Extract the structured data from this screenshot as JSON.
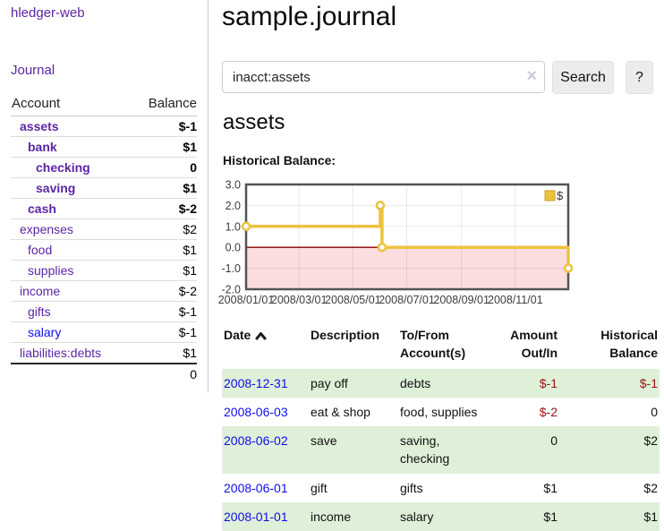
{
  "colors": {
    "accent_purple": "#5b25a4",
    "link_blue": "#0f0eea",
    "negative_strong": "#991010",
    "negative_faded": "#c47373",
    "row_green": "#dff0d8",
    "chart_gold": "#edc240"
  },
  "sidebar": {
    "app_title": "hledger-web",
    "journal_label": "Journal",
    "table": {
      "headers": {
        "account": "Account",
        "balance": "Balance"
      },
      "rows": [
        {
          "name": "assets",
          "balance": "$-1",
          "depth": 0,
          "bold": true,
          "neg": "strong"
        },
        {
          "name": "bank",
          "balance": "$1",
          "depth": 1,
          "bold": true
        },
        {
          "name": "checking",
          "balance": "0",
          "depth": 2,
          "bold": true
        },
        {
          "name": "saving",
          "balance": "$1",
          "depth": 2,
          "bold": true
        },
        {
          "name": "cash",
          "balance": "$-2",
          "depth": 1,
          "bold": true,
          "neg": "strong"
        },
        {
          "name": "expenses",
          "balance": "$2",
          "depth": 0
        },
        {
          "name": "food",
          "balance": "$1",
          "depth": 1
        },
        {
          "name": "supplies",
          "balance": "$1",
          "depth": 1
        },
        {
          "name": "income",
          "balance": "$-2",
          "depth": 0,
          "neg": "faded"
        },
        {
          "name": "gifts",
          "balance": "$-1",
          "depth": 1,
          "neg": "faded"
        },
        {
          "name": "salary",
          "balance": "$-1",
          "depth": 1,
          "neg": "faded",
          "unvisited": true
        },
        {
          "name": "liabilities:debts",
          "balance": "$1",
          "depth": 0,
          "last": true
        }
      ],
      "total": "0"
    }
  },
  "main": {
    "title": "sample.journal",
    "search": {
      "value": "inacct:assets",
      "clear_icon": "×",
      "button_label": "Search",
      "help_label": "?"
    },
    "account_heading": "assets",
    "chart_label": "Historical Balance:"
  },
  "chart_data": {
    "type": "line",
    "step": true,
    "title": "Historical Balance:",
    "series": [
      {
        "name": "$",
        "color": "#edc240",
        "points": [
          [
            "2008-01-01",
            1
          ],
          [
            "2008-06-01",
            2
          ],
          [
            "2008-06-03",
            0
          ],
          [
            "2008-12-31",
            -1
          ]
        ]
      }
    ],
    "x_start": "2008-01-01",
    "x_end": "2008-12-31",
    "x_ticks": [
      "2008/01/01",
      "2008/03/01",
      "2008/05/01",
      "2008/07/01",
      "2008/09/01",
      "2008/11/01"
    ],
    "y_ticks": [
      "3.0",
      "2.0",
      "1.0",
      "0.0",
      "-1.0",
      "-2.0"
    ],
    "ylim": [
      -2,
      3
    ],
    "grid": true,
    "negative_fill": "#fcdddd",
    "zero_line_color": "#8b0000",
    "legend": {
      "label": "$",
      "position": "top-right"
    }
  },
  "register": {
    "headers": [
      "Date",
      "Description",
      "To/From Account(s)",
      "Amount Out/In",
      "Historical Balance"
    ],
    "rows": [
      {
        "date": "2008-12-31",
        "description": "pay off",
        "accounts": "debts",
        "amount": "$-1",
        "balance": "$-1",
        "amount_neg": true,
        "balance_neg": true,
        "shaded": true
      },
      {
        "date": "2008-06-03",
        "description": "eat & shop",
        "accounts": "food, supplies",
        "amount": "$-2",
        "balance": "0",
        "amount_neg": true,
        "shaded": false
      },
      {
        "date": "2008-06-02",
        "description": "save",
        "accounts": "saving, checking",
        "amount": "0",
        "balance": "$2",
        "shaded": true
      },
      {
        "date": "2008-06-01",
        "description": "gift",
        "accounts": "gifts",
        "amount": "$1",
        "balance": "$2",
        "shaded": false
      },
      {
        "date": "2008-01-01",
        "description": "income",
        "accounts": "salary",
        "amount": "$1",
        "balance": "$1",
        "shaded": true
      }
    ]
  }
}
